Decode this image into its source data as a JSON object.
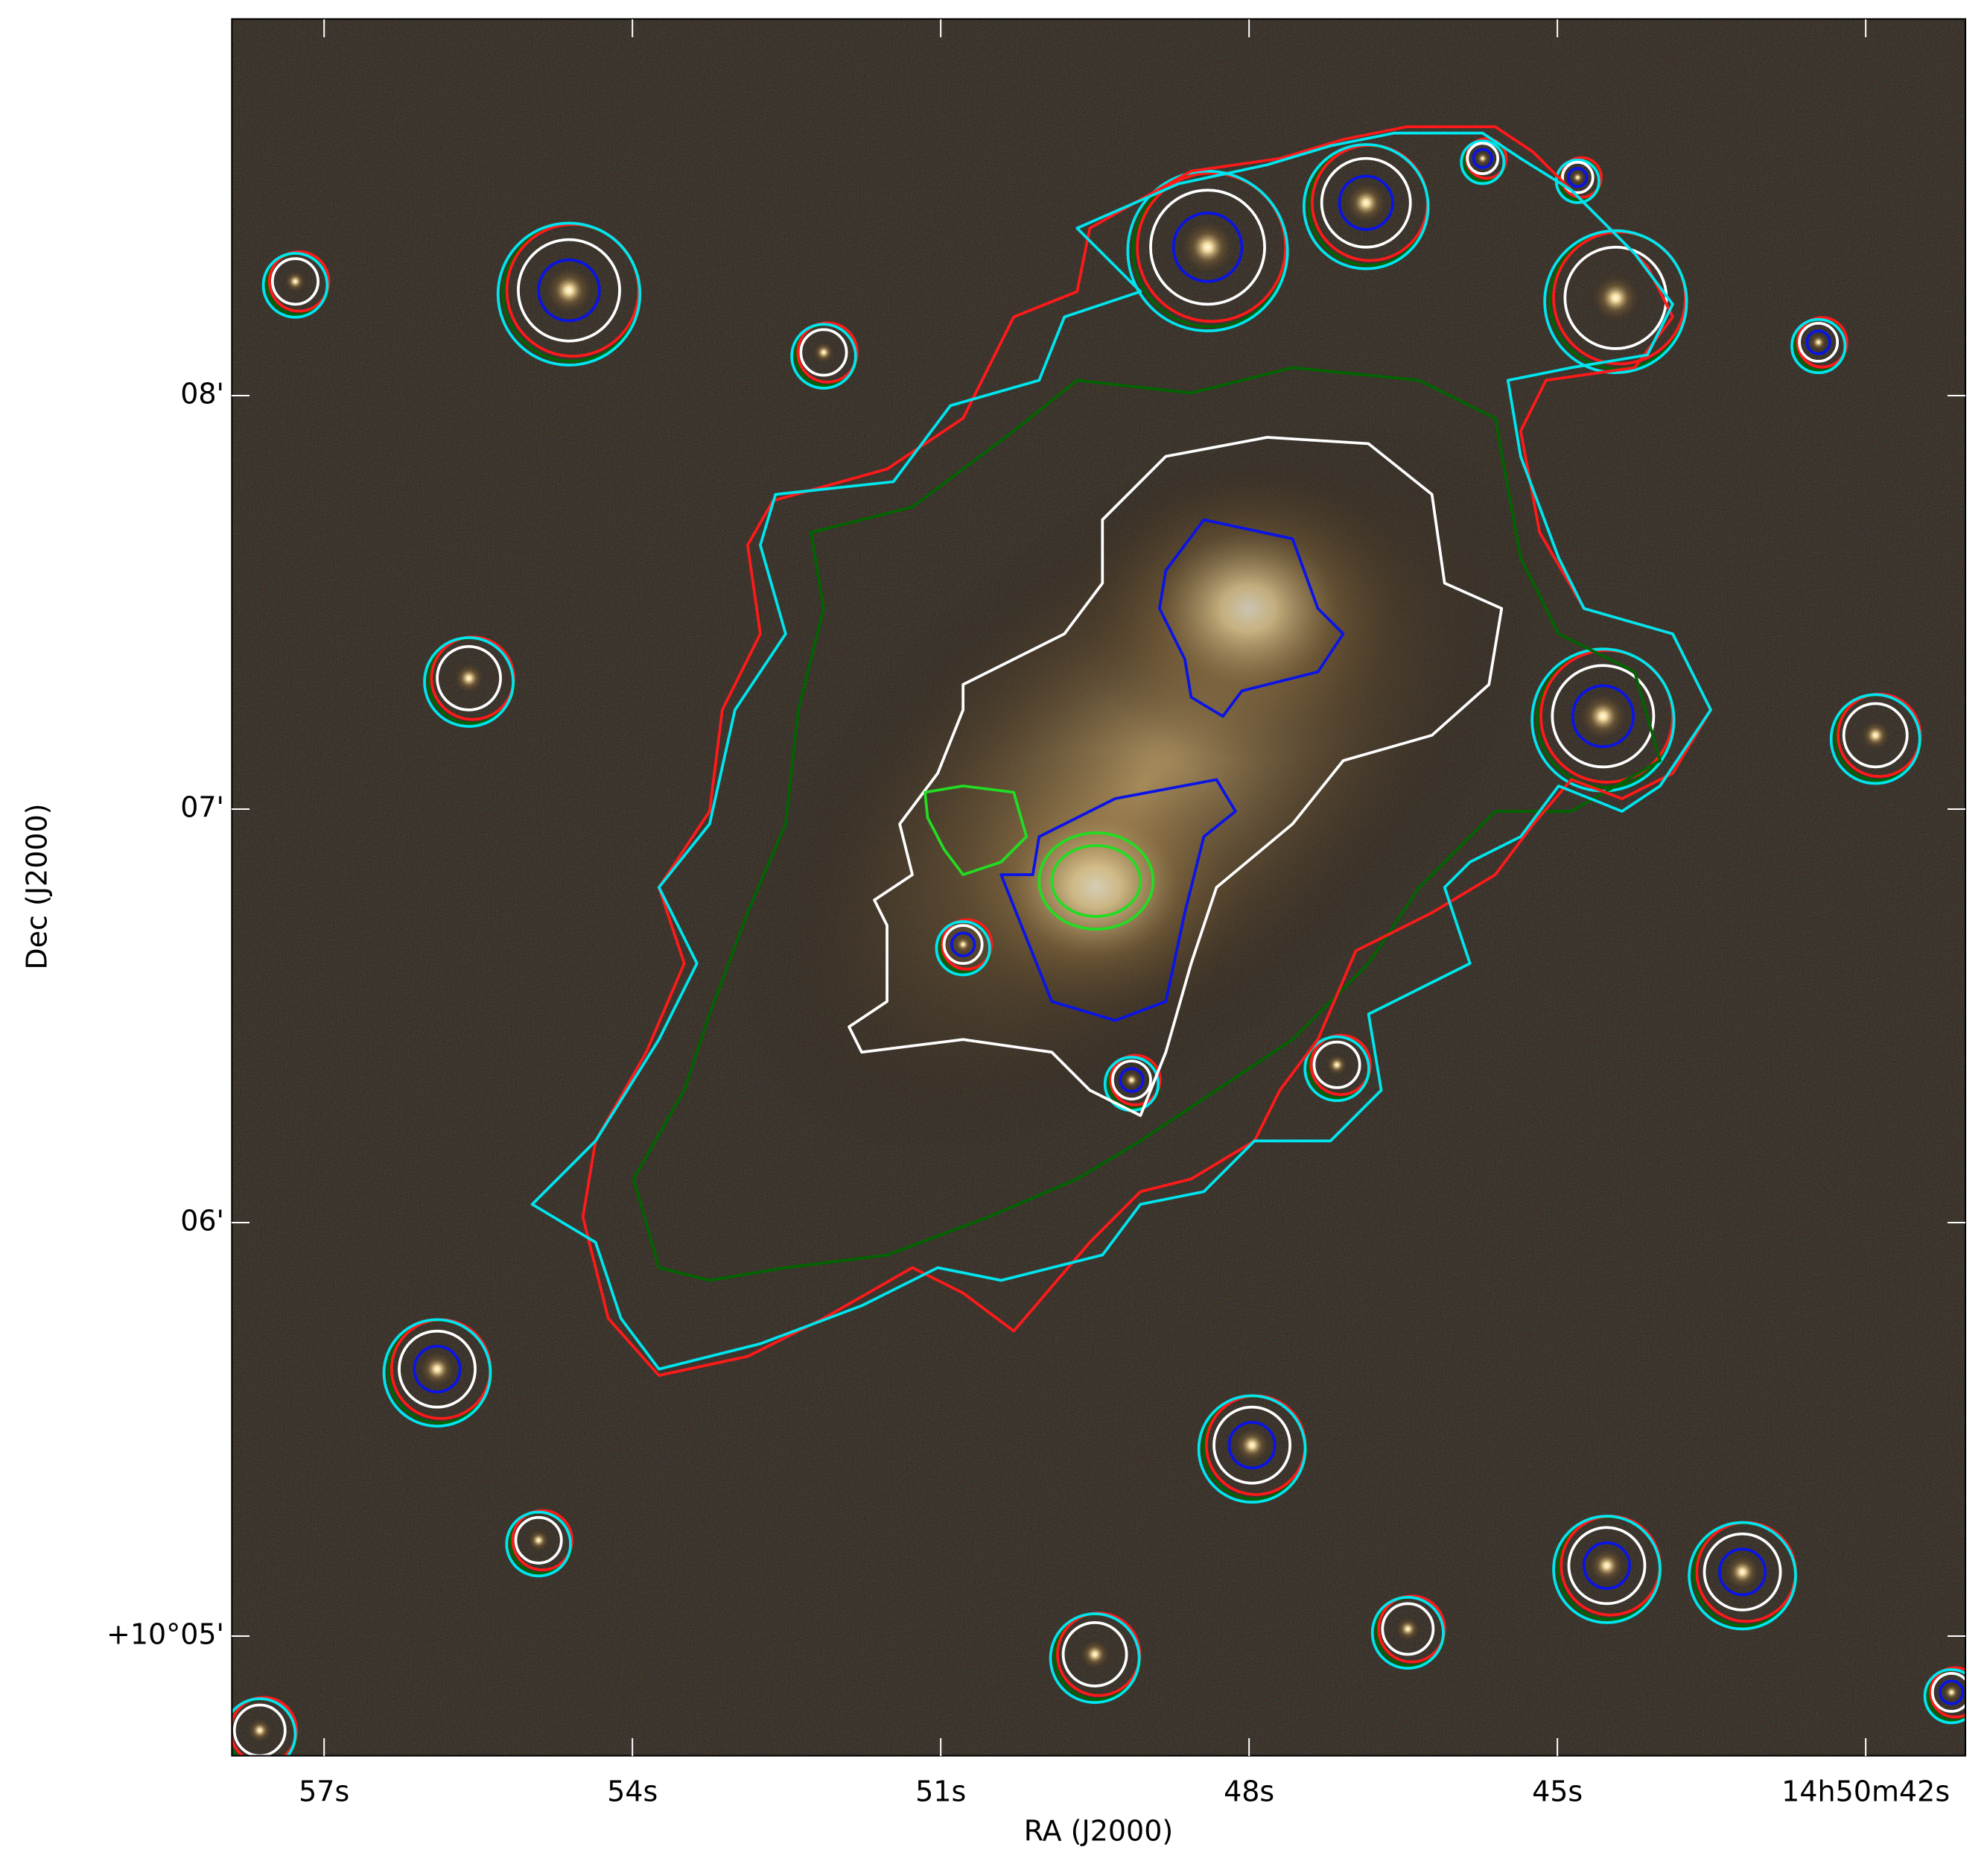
{
  "chart_data": {
    "type": "image",
    "xlabel": "RA (J2000)",
    "ylabel": "Dec (J2000)",
    "xlim": [
      57.9,
      41.03
    ],
    "xticks": [
      {
        "value": 57,
        "label": "57s"
      },
      {
        "value": 54,
        "label": "54s"
      },
      {
        "value": 51,
        "label": "51s"
      },
      {
        "value": 48,
        "label": "48s"
      },
      {
        "value": 45,
        "label": "45s"
      },
      {
        "value": 42,
        "label": "14h50m42s"
      }
    ],
    "ylim": [
      4.71,
      8.91
    ],
    "yticks": [
      {
        "value": 5,
        "label": "+10°05'"
      },
      {
        "value": 6,
        "label": "06'"
      },
      {
        "value": 7,
        "label": "07'"
      },
      {
        "value": 8,
        "label": "08'"
      }
    ]
  }
}
